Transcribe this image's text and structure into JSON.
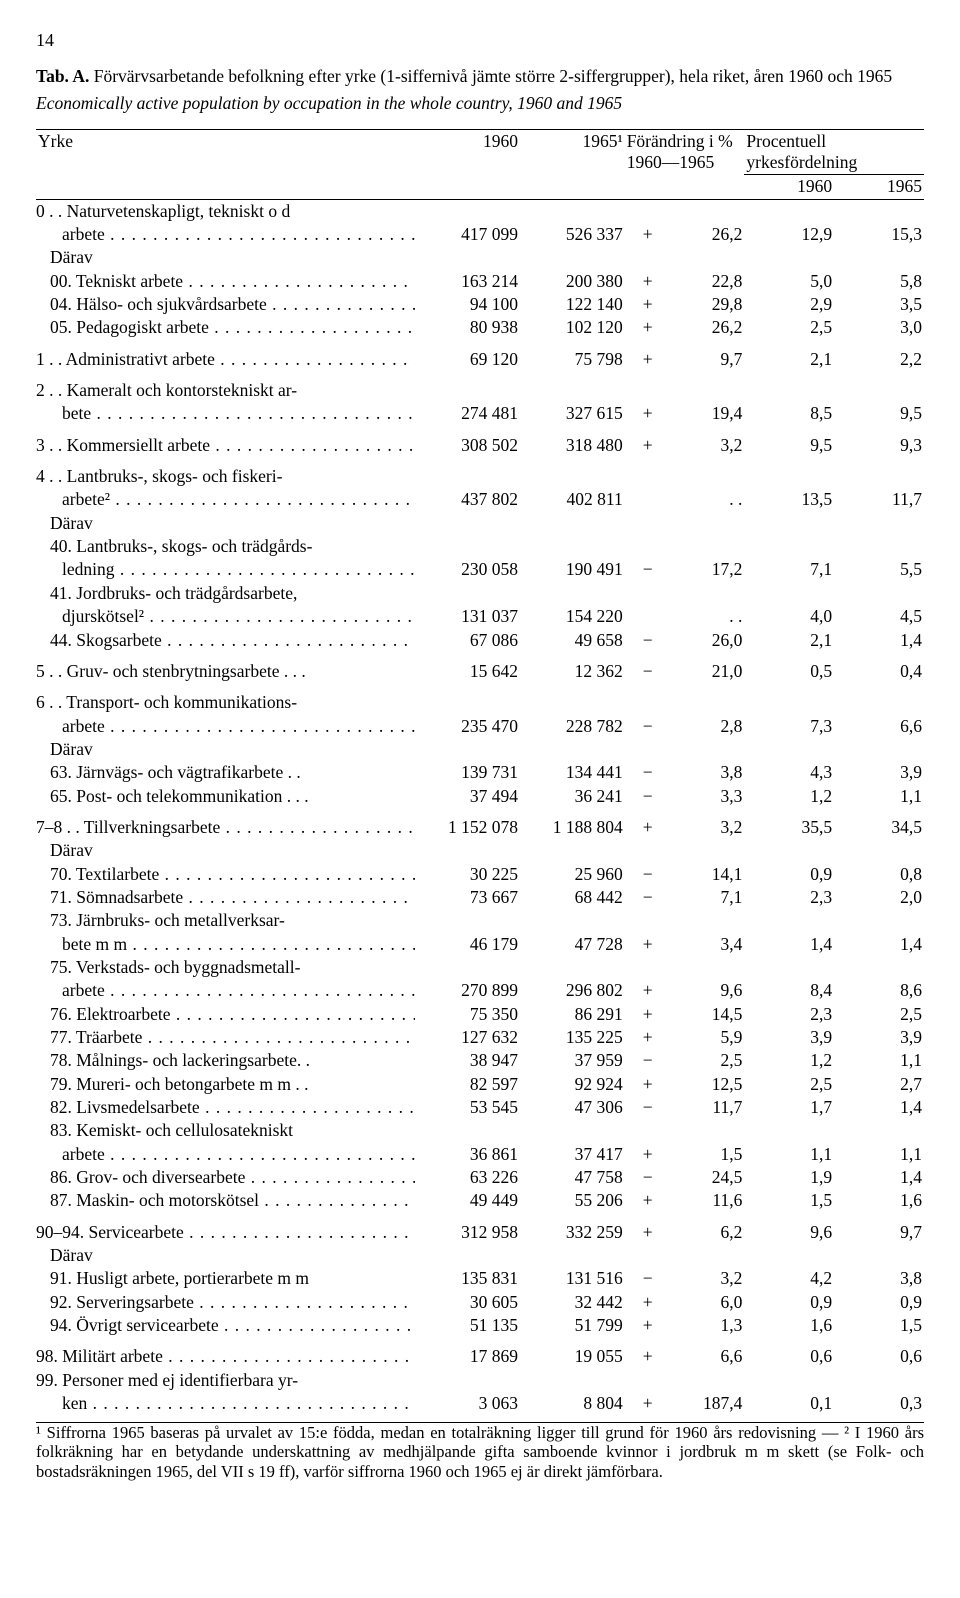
{
  "page_number": "14",
  "title_prefix": "Tab. A.",
  "title_rest": " Förvärvsarbetande befolkning efter yrke (1-siffernivå jämte större 2-siffergrupper), hela riket, åren 1960 och 1965",
  "subtitle": "Economically active population by occupation in the whole country, 1960 and 1965",
  "head": {
    "yrke": "Yrke",
    "y1960": "1960",
    "y1965": "1965¹",
    "change": "Förändring i %",
    "change2": "1960—1965",
    "pct": "Procentuell",
    "pct2": "yrkesfördelning",
    "h1960": "1960",
    "h1965": "1965"
  },
  "rows": [
    {
      "label": "0 . . Naturvetenskapligt, tekniskt o d",
      "indent": 0,
      "nolabelnum": true
    },
    {
      "label": "arbete",
      "indent": 2,
      "a": "417 099",
      "b": "526 337",
      "sign": "+",
      "ch": "26,2",
      "p1": "12,9",
      "p2": "15,3",
      "dots": true
    },
    {
      "label": "Därav",
      "indent": 1
    },
    {
      "label": "00. Tekniskt arbete",
      "indent": 1,
      "a": "163 214",
      "b": "200 380",
      "sign": "+",
      "ch": "22,8",
      "p1": "5,0",
      "p2": "5,8",
      "dots": true
    },
    {
      "label": "04. Hälso- och sjukvårdsarbete",
      "indent": 1,
      "a": "94 100",
      "b": "122 140",
      "sign": "+",
      "ch": "29,8",
      "p1": "2,9",
      "p2": "3,5",
      "dots": true
    },
    {
      "label": "05. Pedagogiskt arbete",
      "indent": 1,
      "a": "80 938",
      "b": "102 120",
      "sign": "+",
      "ch": "26,2",
      "p1": "2,5",
      "p2": "3,0",
      "dots": true
    },
    {
      "spacer": true
    },
    {
      "label": "1 . . Administrativt arbete",
      "indent": 0,
      "a": "69 120",
      "b": "75 798",
      "sign": "+",
      "ch": "9,7",
      "p1": "2,1",
      "p2": "2,2",
      "dots": true
    },
    {
      "spacer": true
    },
    {
      "label": "2 . . Kameralt och kontorstekniskt ar-",
      "indent": 0
    },
    {
      "label": "bete",
      "indent": 2,
      "a": "274 481",
      "b": "327 615",
      "sign": "+",
      "ch": "19,4",
      "p1": "8,5",
      "p2": "9,5",
      "dots": true
    },
    {
      "spacer": true
    },
    {
      "label": "3 . . Kommersiellt arbete",
      "indent": 0,
      "a": "308 502",
      "b": "318 480",
      "sign": "+",
      "ch": "3,2",
      "p1": "9,5",
      "p2": "9,3",
      "dots": true
    },
    {
      "spacer": true
    },
    {
      "label": "4 . . Lantbruks-, skogs- och fiskeri-",
      "indent": 0
    },
    {
      "label": "arbete²",
      "indent": 2,
      "a": "437 802",
      "b": "402 811",
      "sign": "",
      "ch": ". .",
      "p1": "13,5",
      "p2": "11,7",
      "dots": true
    },
    {
      "label": "Därav",
      "indent": 1
    },
    {
      "label": "40. Lantbruks-, skogs- och trädgårds-",
      "indent": 1
    },
    {
      "label": "ledning",
      "indent": 2,
      "a": "230 058",
      "b": "190 491",
      "sign": "−",
      "ch": "17,2",
      "p1": "7,1",
      "p2": "5,5",
      "dots": true
    },
    {
      "label": "41. Jordbruks- och trädgårdsarbete,",
      "indent": 1
    },
    {
      "label": "djurskötsel²",
      "indent": 2,
      "a": "131 037",
      "b": "154 220",
      "sign": "",
      "ch": ". .",
      "p1": "4,0",
      "p2": "4,5",
      "dots": true
    },
    {
      "label": "44. Skogsarbete",
      "indent": 1,
      "a": "67 086",
      "b": "49 658",
      "sign": "−",
      "ch": "26,0",
      "p1": "2,1",
      "p2": "1,4",
      "dots": true
    },
    {
      "spacer": true
    },
    {
      "label": "5 . . Gruv- och stenbrytningsarbete . . .",
      "indent": 0,
      "a": "15 642",
      "b": "12 362",
      "sign": "−",
      "ch": "21,0",
      "p1": "0,5",
      "p2": "0,4"
    },
    {
      "spacer": true
    },
    {
      "label": "6 . . Transport- och kommunikations-",
      "indent": 0
    },
    {
      "label": "arbete",
      "indent": 2,
      "a": "235 470",
      "b": "228 782",
      "sign": "−",
      "ch": "2,8",
      "p1": "7,3",
      "p2": "6,6",
      "dots": true
    },
    {
      "label": "Därav",
      "indent": 1
    },
    {
      "label": "63. Järnvägs- och vägtrafikarbete . .",
      "indent": 1,
      "a": "139 731",
      "b": "134 441",
      "sign": "−",
      "ch": "3,8",
      "p1": "4,3",
      "p2": "3,9"
    },
    {
      "label": "65. Post- och telekommunikation . . .",
      "indent": 1,
      "a": "37 494",
      "b": "36 241",
      "sign": "−",
      "ch": "3,3",
      "p1": "1,2",
      "p2": "1,1"
    },
    {
      "spacer": true
    },
    {
      "label": "7–8 . . Tillverkningsarbete",
      "indent": 0,
      "a": "1 152 078",
      "b": "1 188 804",
      "sign": "+",
      "ch": "3,2",
      "p1": "35,5",
      "p2": "34,5",
      "dots": true
    },
    {
      "label": "Därav",
      "indent": 1
    },
    {
      "label": "70. Textilarbete",
      "indent": 1,
      "a": "30 225",
      "b": "25 960",
      "sign": "−",
      "ch": "14,1",
      "p1": "0,9",
      "p2": "0,8",
      "dots": true
    },
    {
      "label": "71. Sömnadsarbete",
      "indent": 1,
      "a": "73 667",
      "b": "68 442",
      "sign": "−",
      "ch": "7,1",
      "p1": "2,3",
      "p2": "2,0",
      "dots": true
    },
    {
      "label": "73. Järnbruks- och metallverksar-",
      "indent": 1
    },
    {
      "label": "bete m m",
      "indent": 2,
      "a": "46 179",
      "b": "47 728",
      "sign": "+",
      "ch": "3,4",
      "p1": "1,4",
      "p2": "1,4",
      "dots": true
    },
    {
      "label": "75. Verkstads- och byggnadsmetall-",
      "indent": 1
    },
    {
      "label": "arbete",
      "indent": 2,
      "a": "270 899",
      "b": "296 802",
      "sign": "+",
      "ch": "9,6",
      "p1": "8,4",
      "p2": "8,6",
      "dots": true
    },
    {
      "label": "76. Elektroarbete",
      "indent": 1,
      "a": "75 350",
      "b": "86 291",
      "sign": "+",
      "ch": "14,5",
      "p1": "2,3",
      "p2": "2,5",
      "dots": true
    },
    {
      "label": "77. Träarbete",
      "indent": 1,
      "a": "127 632",
      "b": "135 225",
      "sign": "+",
      "ch": "5,9",
      "p1": "3,9",
      "p2": "3,9",
      "dots": true
    },
    {
      "label": "78. Målnings- och lackeringsarbete. .",
      "indent": 1,
      "a": "38 947",
      "b": "37 959",
      "sign": "−",
      "ch": "2,5",
      "p1": "1,2",
      "p2": "1,1"
    },
    {
      "label": "79. Mureri- och betongarbete m m . .",
      "indent": 1,
      "a": "82 597",
      "b": "92 924",
      "sign": "+",
      "ch": "12,5",
      "p1": "2,5",
      "p2": "2,7"
    },
    {
      "label": "82. Livsmedelsarbete",
      "indent": 1,
      "a": "53 545",
      "b": "47 306",
      "sign": "−",
      "ch": "11,7",
      "p1": "1,7",
      "p2": "1,4",
      "dots": true
    },
    {
      "label": "83. Kemiskt- och cellulosatekniskt",
      "indent": 1
    },
    {
      "label": "arbete",
      "indent": 2,
      "a": "36 861",
      "b": "37 417",
      "sign": "+",
      "ch": "1,5",
      "p1": "1,1",
      "p2": "1,1",
      "dots": true
    },
    {
      "label": "86. Grov- och diversearbete",
      "indent": 1,
      "a": "63 226",
      "b": "47 758",
      "sign": "−",
      "ch": "24,5",
      "p1": "1,9",
      "p2": "1,4",
      "dots": true
    },
    {
      "label": "87. Maskin- och motorskötsel",
      "indent": 1,
      "a": "49 449",
      "b": "55 206",
      "sign": "+",
      "ch": "11,6",
      "p1": "1,5",
      "p2": "1,6",
      "dots": true
    },
    {
      "spacer": true
    },
    {
      "label": "90–94. Servicearbete",
      "indent": 0,
      "a": "312 958",
      "b": "332 259",
      "sign": "+",
      "ch": "6,2",
      "p1": "9,6",
      "p2": "9,7",
      "dots": true
    },
    {
      "label": "Därav",
      "indent": 1
    },
    {
      "label": "91. Husligt arbete, portierarbete m m",
      "indent": 1,
      "a": "135 831",
      "b": "131 516",
      "sign": "−",
      "ch": "3,2",
      "p1": "4,2",
      "p2": "3,8"
    },
    {
      "label": "92. Serveringsarbete",
      "indent": 1,
      "a": "30 605",
      "b": "32 442",
      "sign": "+",
      "ch": "6,0",
      "p1": "0,9",
      "p2": "0,9",
      "dots": true
    },
    {
      "label": "94. Övrigt servicearbete",
      "indent": 1,
      "a": "51 135",
      "b": "51 799",
      "sign": "+",
      "ch": "1,3",
      "p1": "1,6",
      "p2": "1,5",
      "dots": true
    },
    {
      "spacer": true
    },
    {
      "label": "98. Militärt arbete",
      "indent": 0,
      "a": "17 869",
      "b": "19 055",
      "sign": "+",
      "ch": "6,6",
      "p1": "0,6",
      "p2": "0,6",
      "dots": true
    },
    {
      "label": "99. Personer med ej identifierbara yr-",
      "indent": 0
    },
    {
      "label": "ken",
      "indent": 2,
      "a": "3 063",
      "b": "8 804",
      "sign": "+",
      "ch": "187,4",
      "p1": "0,1",
      "p2": "0,3",
      "dots": true
    }
  ],
  "footnote": "¹ Siffrorna 1965 baseras på urvalet av 15:e födda, medan en totalräkning ligger till grund för 1960 års redovisning — ² I 1960 års folkräkning har en betydande underskattning av medhjälpande gifta samboende kvinnor i jordbruk m m skett (se Folk- och bostadsräkningen 1965, del VII s 19 ff), varför siffrorna 1960 och 1965 ej är direkt jämförbara.",
  "style": {
    "font": "Times New Roman",
    "fontsize_body": 17.5,
    "fontsize_footnote": 16.5,
    "text_color": "#000000",
    "background": "#ffffff",
    "rule_color": "#000000"
  }
}
